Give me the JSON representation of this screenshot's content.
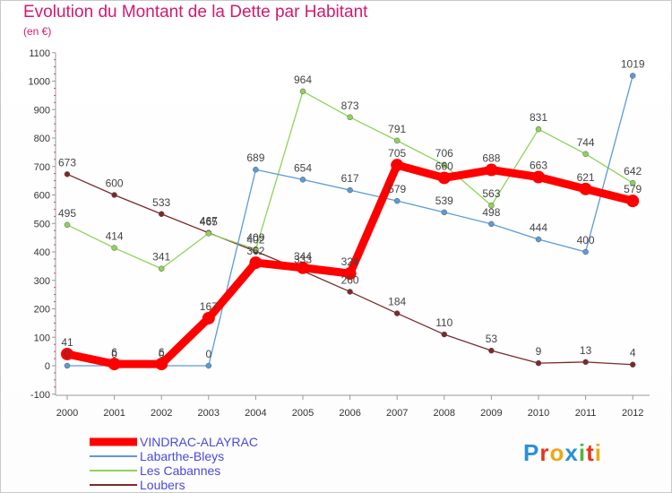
{
  "title": "Evolution du Montant de la Dette par Habitant",
  "subtitle": "(en €)",
  "logo_text": "Proxiti",
  "chart_data": {
    "type": "line",
    "title": "Evolution du Montant de la Dette par Habitant",
    "ylabel": "(en €)",
    "xlabel": "",
    "ylim": [
      -100,
      1100
    ],
    "yticks": [
      -100,
      0,
      100,
      200,
      300,
      400,
      500,
      600,
      700,
      800,
      900,
      1000,
      1100
    ],
    "categories": [
      "2000",
      "2001",
      "2002",
      "2003",
      "2004",
      "2005",
      "2006",
      "2007",
      "2008",
      "2009",
      "2010",
      "2011",
      "2012"
    ],
    "grid": false,
    "legend": "bottom-left",
    "series": [
      {
        "name": "VINDRAC-ALAYRAC",
        "color": "#ff0000",
        "values": [
          41,
          6,
          6,
          167,
          362,
          344,
          324,
          705,
          660,
          688,
          663,
          621,
          579
        ]
      },
      {
        "name": "Labarthe-Bleys",
        "color": "#5b9bd5",
        "values": [
          0,
          0,
          0,
          0,
          689,
          654,
          617,
          579,
          539,
          498,
          444,
          400,
          1019
        ]
      },
      {
        "name": "Les Cabannes",
        "color": "#8fd35a",
        "values": [
          495,
          414,
          341,
          465,
          409,
          964,
          873,
          791,
          706,
          563,
          831,
          744,
          642
        ]
      },
      {
        "name": "Loubers",
        "color": "#7a2a2a",
        "values": [
          673,
          600,
          533,
          467,
          402,
          333,
          260,
          184,
          110,
          53,
          9,
          13,
          4
        ]
      }
    ]
  }
}
